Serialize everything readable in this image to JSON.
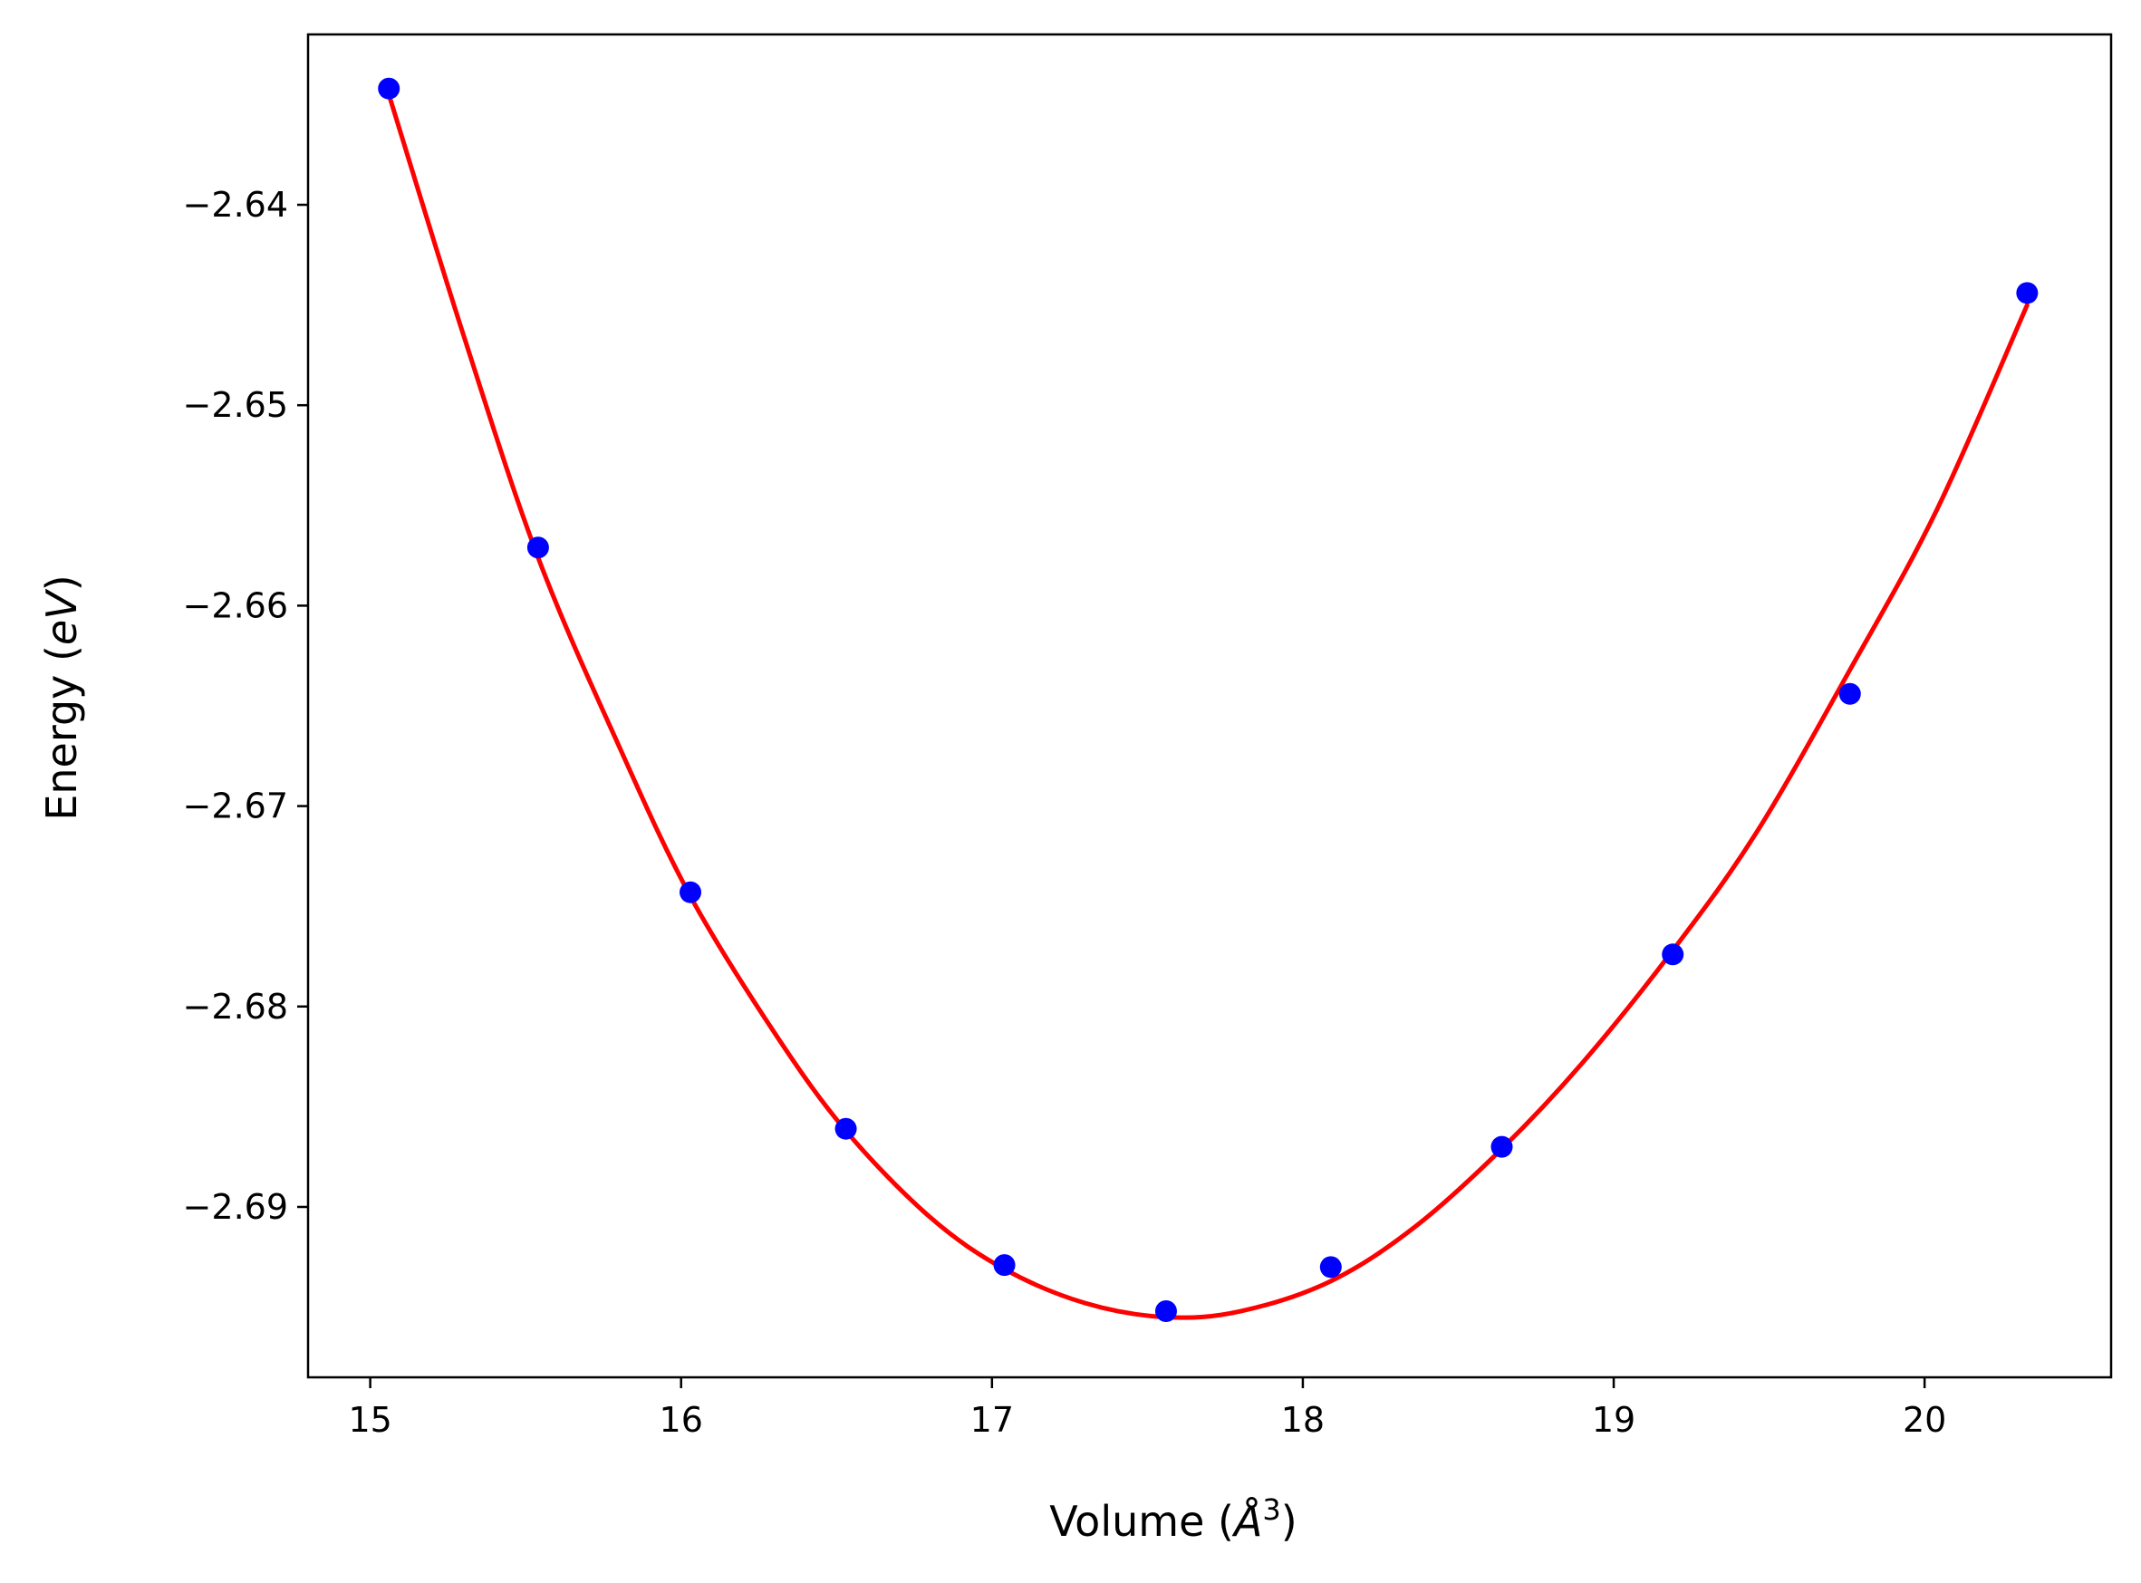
{
  "chart_data": {
    "type": "scatter",
    "title": "",
    "xlabel": "Volume (Å³)",
    "xlabel_parts": {
      "prefix": "Volume (",
      "symbol": "Å",
      "superscript": "3",
      "suffix": ")"
    },
    "ylabel": "Energy (eV)",
    "ylabel_parts": {
      "prefix": "Energy (",
      "symbol": "eV",
      "suffix": ")"
    },
    "xlim": [
      14.8,
      20.6
    ],
    "ylim": [
      -2.6985,
      -2.6315
    ],
    "xticks": [
      15,
      16,
      17,
      18,
      19,
      20
    ],
    "xtick_labels": [
      "15",
      "16",
      "17",
      "18",
      "19",
      "20"
    ],
    "yticks": [
      -2.64,
      -2.65,
      -2.66,
      -2.67,
      -2.68,
      -2.69
    ],
    "ytick_labels": [
      "−2.64",
      "−2.65",
      "−2.66",
      "−2.67",
      "−2.68",
      "−2.69"
    ],
    "grid": false,
    "legend": null,
    "series": [
      {
        "kind": "points",
        "color": "#0000ff",
        "x": [
          15.06,
          15.54,
          16.03,
          16.53,
          17.04,
          17.56,
          18.09,
          18.64,
          19.19,
          19.76,
          20.33
        ],
        "y": [
          -2.6342,
          -2.6571,
          -2.6743,
          -2.6861,
          -2.6929,
          -2.6952,
          -2.693,
          -2.687,
          -2.6774,
          -2.6644,
          -2.6444
        ]
      },
      {
        "kind": "fit-curve",
        "color": "#ff0000",
        "x": [
          15.06,
          15.3,
          15.54,
          15.8,
          16.03,
          16.3,
          16.53,
          16.8,
          17.04,
          17.3,
          17.56,
          17.8,
          18.09,
          18.36,
          18.64,
          18.9,
          19.19,
          19.46,
          19.76,
          20.04,
          20.33
        ],
        "y": [
          -2.6345,
          -2.6465,
          -2.6576,
          -2.667,
          -2.6745,
          -2.6813,
          -2.6862,
          -2.6905,
          -2.6931,
          -2.6948,
          -2.6955,
          -2.6952,
          -2.6937,
          -2.691,
          -2.6871,
          -2.6828,
          -2.6772,
          -2.6713,
          -2.6632,
          -2.6552,
          -2.645
        ]
      }
    ]
  }
}
